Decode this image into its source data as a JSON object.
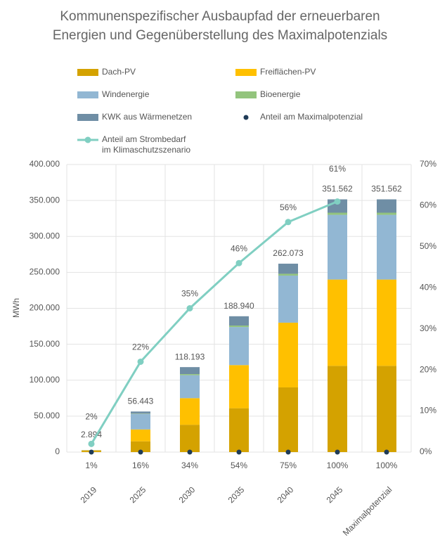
{
  "chart_data": {
    "type": "bar",
    "title": "Kommunenspezifischer Ausbaupfad der erneuerbaren\nEnergien und Gegenüberstellung des Maximalpotenzials",
    "ylabel": "MWh",
    "categories": [
      "2019",
      "2025",
      "2030",
      "2035",
      "2040",
      "2045",
      "Maximalpotenzial"
    ],
    "series": [
      {
        "name": "Dach-PV",
        "type": "bar",
        "color": "#d4a200",
        "values": [
          1800,
          15000,
          38000,
          61000,
          90000,
          120000,
          120000
        ]
      },
      {
        "name": "Freiflächen-PV",
        "type": "bar",
        "color": "#ffc000",
        "values": [
          600,
          16500,
          37000,
          60000,
          90000,
          120000,
          120000
        ]
      },
      {
        "name": "Windenergie",
        "type": "bar",
        "color": "#92b7d3",
        "values": [
          300,
          21500,
          32000,
          53000,
          65500,
          90000,
          90000
        ]
      },
      {
        "name": "Bioenergie",
        "type": "bar",
        "color": "#93c47d",
        "values": [
          100,
          500,
          1500,
          2000,
          2500,
          3000,
          3000
        ]
      },
      {
        "name": "KWK aus Wärmenetzen",
        "type": "bar",
        "color": "#6f8ea5",
        "values": [
          94,
          2943,
          9693,
          12940,
          14073,
          18562,
          18562
        ]
      },
      {
        "name": "Anteil am Maximalpotenzial",
        "type": "dot",
        "color": "#1f3b57",
        "values": [
          1,
          16,
          34,
          54,
          75,
          100,
          100
        ],
        "value_labels": [
          "1%",
          "16%",
          "34%",
          "54%",
          "75%",
          "100%",
          "100%"
        ]
      },
      {
        "name": "Anteil am Strombedarf\nim Klimaschutzszenario",
        "type": "line",
        "axis": "y2",
        "color": "#80cfc2",
        "values": [
          2,
          22,
          35,
          46,
          56,
          61,
          null
        ],
        "value_labels": [
          "2%",
          "22%",
          "35%",
          "46%",
          "56%",
          "61%",
          null
        ]
      }
    ],
    "totals": [
      2894,
      56443,
      118193,
      188940,
      262073,
      351562,
      351562
    ],
    "total_labels": [
      "2.894",
      "56.443",
      "118.193",
      "188.940",
      "262.073",
      "351.562",
      "351.562"
    ],
    "ylim": [
      0,
      400000
    ],
    "yticks": [
      0,
      {
        "value": 50000,
        "label": "50.000"
      },
      {
        "value": 100000,
        "label": "100.000"
      },
      {
        "value": 150000,
        "label": "150.000"
      },
      {
        "value": 200000,
        "label": "200.000"
      },
      {
        "value": 250000,
        "label": "250.000"
      },
      {
        "value": 300000,
        "label": "300.000"
      },
      {
        "value": 350000,
        "label": "350.000"
      },
      {
        "value": 400000,
        "label": "400.000"
      }
    ],
    "y2lim": [
      0,
      70
    ],
    "y2ticks": [
      {
        "value": 0,
        "label": "0%"
      },
      {
        "value": 10,
        "label": "10%"
      },
      {
        "value": 20,
        "label": "20%"
      },
      {
        "value": 30,
        "label": "30%"
      },
      {
        "value": 40,
        "label": "40%"
      },
      {
        "value": 50,
        "label": "50%"
      },
      {
        "value": 60,
        "label": "60%"
      },
      {
        "value": 70,
        "label": "70%"
      }
    ],
    "grid": true
  }
}
